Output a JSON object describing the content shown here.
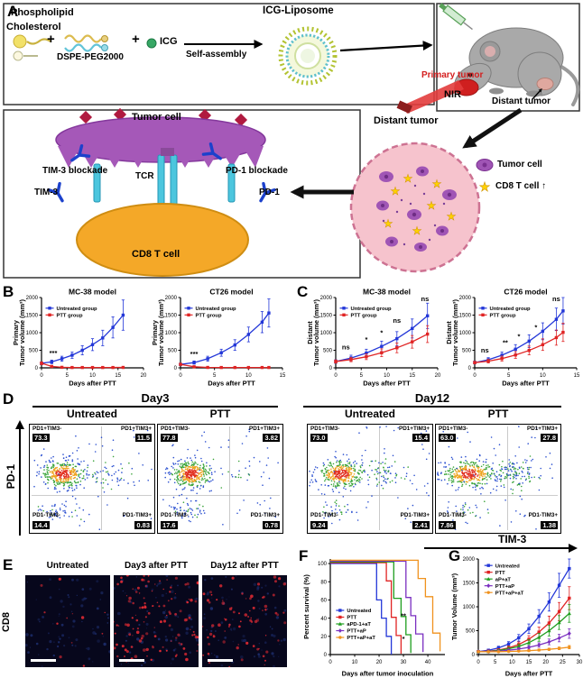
{
  "figure": {
    "panel_labels": {
      "A": "A",
      "B": "B",
      "C": "C",
      "D": "D",
      "E": "E",
      "F": "F",
      "G": "G"
    }
  },
  "panelA": {
    "phospholipid": "Phospholipid",
    "cholesterol": "Cholesterol",
    "plus": "+",
    "dspe": "DSPE-PEG2000",
    "icg": "ICG",
    "self_assembly": "Self-assembly",
    "icg_liposome": "ICG-Liposome",
    "primary_tumor": "Primary tumor",
    "nir": "NIR",
    "distant_tumor_on_mouse": "Distant tumor",
    "tumor_cell": "Tumor cell",
    "tim3_blockade": "TIM-3 blockade",
    "tcr": "TCR",
    "pd1_blockade": "PD-1 blockade",
    "tim3": "TIM-3",
    "pd1": "PD-1",
    "cd8_t_cell": "CD8 T cell",
    "distant_tumor": "Distant tumor",
    "legend_tumor_cell": "Tumor cell",
    "legend_cd8": "CD8 T cell ↑"
  },
  "chart_data": [
    {
      "id": "B-MC38",
      "type": "line",
      "title": "MC-38 model",
      "xlabel": "Days after PTT",
      "ylabel": [
        "Primary",
        "Tumor volume (mm³)"
      ],
      "xlim": [
        0,
        20
      ],
      "xticks": [
        0,
        5,
        10,
        15,
        20
      ],
      "ylim": [
        0,
        2000
      ],
      "yticks": [
        0,
        500,
        1000,
        1500,
        2000
      ],
      "legend_pos": [
        0.04,
        0.1
      ],
      "m": {
        "l": 32,
        "r": 5,
        "t": 12,
        "b": 22
      },
      "series": [
        {
          "name": "Untreated group",
          "color": "#2337d8",
          "marker": "square",
          "x": [
            0,
            2,
            4,
            6,
            8,
            10,
            12,
            14,
            16
          ],
          "y": [
            130,
            170,
            260,
            360,
            500,
            660,
            850,
            1150,
            1500
          ],
          "err": [
            40,
            50,
            70,
            90,
            130,
            170,
            220,
            300,
            430
          ]
        },
        {
          "name": "PTT group",
          "color": "#e02424",
          "marker": "square",
          "x": [
            0,
            2,
            4,
            6,
            8,
            10,
            12,
            14,
            16
          ],
          "y": [
            130,
            40,
            15,
            10,
            10,
            10,
            10,
            10,
            12
          ],
          "err": [
            40,
            20,
            8,
            5,
            5,
            5,
            5,
            5,
            6
          ]
        }
      ],
      "annotations": [
        {
          "t": "***",
          "x": 2.3,
          "y": 360
        }
      ]
    },
    {
      "id": "B-CT26",
      "type": "line",
      "title": "CT26 model",
      "xlabel": "Days after PTT",
      "ylabel": [
        "Primary",
        "Tumor volume (mm³)"
      ],
      "xlim": [
        0,
        15
      ],
      "xticks": [
        0,
        5,
        10,
        15
      ],
      "ylim": [
        0,
        2000
      ],
      "yticks": [
        0,
        500,
        1000,
        1500,
        2000
      ],
      "legend_pos": [
        0.04,
        0.1
      ],
      "m": {
        "l": 32,
        "r": 5,
        "t": 12,
        "b": 22
      },
      "series": [
        {
          "name": "Untreated group",
          "color": "#2337d8",
          "marker": "square",
          "x": [
            0,
            2,
            4,
            6,
            8,
            10,
            12,
            13
          ],
          "y": [
            100,
            150,
            260,
            430,
            650,
            950,
            1300,
            1560
          ],
          "err": [
            30,
            45,
            70,
            100,
            150,
            210,
            300,
            400
          ]
        },
        {
          "name": "PTT group",
          "color": "#e02424",
          "marker": "square",
          "x": [
            0,
            2,
            4,
            6,
            8,
            10,
            12,
            13
          ],
          "y": [
            100,
            30,
            12,
            10,
            10,
            10,
            10,
            10
          ],
          "err": [
            30,
            15,
            8,
            5,
            5,
            5,
            5,
            5
          ]
        }
      ],
      "annotations": [
        {
          "t": "***",
          "x": 2.0,
          "y": 330
        }
      ]
    },
    {
      "id": "C-MC38",
      "type": "line",
      "title": "MC-38 model",
      "xlabel": "Days after PTT",
      "ylabel": [
        "Distant",
        "Tumor volume (mm³)"
      ],
      "xlim": [
        0,
        20
      ],
      "xticks": [
        0,
        5,
        10,
        15,
        20
      ],
      "ylim": [
        0,
        2000
      ],
      "yticks": [
        0,
        500,
        1000,
        1500,
        2000
      ],
      "legend_pos": [
        0.04,
        0.1
      ],
      "m": {
        "l": 32,
        "r": 5,
        "t": 12,
        "b": 22
      },
      "series": [
        {
          "name": "Untreated group",
          "color": "#2337d8",
          "marker": "square",
          "x": [
            0,
            3,
            6,
            9,
            12,
            15,
            18
          ],
          "y": [
            180,
            280,
            420,
            610,
            830,
            1120,
            1480
          ],
          "err": [
            50,
            80,
            110,
            150,
            200,
            270,
            360
          ]
        },
        {
          "name": "PTT group",
          "color": "#e02424",
          "marker": "square",
          "x": [
            0,
            3,
            6,
            9,
            12,
            15,
            18
          ],
          "y": [
            180,
            235,
            315,
            430,
            570,
            740,
            960
          ],
          "err": [
            45,
            60,
            80,
            110,
            140,
            180,
            240
          ]
        }
      ],
      "annotations": [
        {
          "t": "ns",
          "x": 2,
          "y": 520
        },
        {
          "t": "*",
          "x": 6,
          "y": 740
        },
        {
          "t": "*",
          "x": 9,
          "y": 940
        },
        {
          "t": "ns",
          "x": 12,
          "y": 1280
        },
        {
          "t": "ns",
          "x": 17.5,
          "y": 1900
        }
      ]
    },
    {
      "id": "C-CT26",
      "type": "line",
      "title": "CT26 model",
      "xlabel": "Days after PTT",
      "ylabel": [
        "Distant",
        "Tumor volume (mm³)"
      ],
      "xlim": [
        0,
        15
      ],
      "xticks": [
        0,
        5,
        10,
        15
      ],
      "ylim": [
        0,
        2000
      ],
      "yticks": [
        0,
        500,
        1000,
        1500,
        2000
      ],
      "legend_pos": [
        0.04,
        0.1
      ],
      "m": {
        "l": 32,
        "r": 5,
        "t": 12,
        "b": 22
      },
      "series": [
        {
          "name": "Untreated group",
          "color": "#2337d8",
          "marker": "square",
          "x": [
            0,
            2,
            4,
            6,
            8,
            10,
            12,
            13
          ],
          "y": [
            150,
            230,
            360,
            530,
            760,
            1040,
            1380,
            1620
          ],
          "err": [
            40,
            60,
            90,
            130,
            180,
            240,
            320,
            380
          ]
        },
        {
          "name": "PTT group",
          "color": "#e02424",
          "marker": "square",
          "x": [
            0,
            2,
            4,
            6,
            8,
            10,
            12,
            13
          ],
          "y": [
            150,
            190,
            265,
            365,
            495,
            660,
            860,
            1010
          ],
          "err": [
            35,
            50,
            70,
            95,
            125,
            165,
            215,
            260
          ]
        }
      ],
      "annotations": [
        {
          "t": "ns",
          "x": 1.5,
          "y": 440
        },
        {
          "t": "**",
          "x": 4.5,
          "y": 660
        },
        {
          "t": "*",
          "x": 6.5,
          "y": 830
        },
        {
          "t": "*",
          "x": 9,
          "y": 1090
        },
        {
          "t": "ns",
          "x": 12,
          "y": 1900
        }
      ]
    },
    {
      "id": "F-survival",
      "type": "step",
      "xlabel": "Days after tumor inoculation",
      "ylabel": [
        "Percent survival (%)"
      ],
      "xlim": [
        0,
        47
      ],
      "xticks": [
        0,
        10,
        20,
        30,
        40
      ],
      "ylim": [
        0,
        105
      ],
      "yticks": [
        0,
        20,
        40,
        60,
        80,
        100
      ],
      "legend_pos": [
        0.05,
        0.5
      ],
      "m": {
        "l": 30,
        "r": 5,
        "t": 4,
        "b": 26
      },
      "series": [
        {
          "name": "Untreated",
          "color": "#2337d8",
          "marker": "square",
          "x": [
            0,
            17,
            19,
            21,
            23,
            25
          ],
          "y": [
            100,
            100,
            60,
            40,
            20,
            0
          ]
        },
        {
          "name": "PTT",
          "color": "#e02424",
          "marker": "square",
          "x": [
            0,
            21,
            23,
            25,
            27,
            29
          ],
          "y": [
            100,
            100,
            80,
            40,
            20,
            0
          ]
        },
        {
          "name": "aPD-1+aT",
          "color": "#1e9e1e",
          "marker": "triangle",
          "x": [
            0,
            24,
            26,
            29,
            31,
            33
          ],
          "y": [
            100,
            100,
            60,
            40,
            20,
            0
          ]
        },
        {
          "name": "PTT+aP",
          "color": "#7a2fc0",
          "marker": "diamond",
          "x": [
            0,
            28,
            31,
            33,
            35,
            38
          ],
          "y": [
            100,
            100,
            60,
            40,
            20,
            0
          ]
        },
        {
          "name": "PTT+aP+aT",
          "color": "#f0921e",
          "marker": "circle",
          "x": [
            0,
            33,
            36,
            39,
            42,
            45
          ],
          "y": [
            100,
            100,
            80,
            60,
            20,
            0
          ]
        }
      ],
      "annotations": [
        {
          "t": "**",
          "x": 30,
          "y": 40
        },
        {
          "t": "*",
          "x": 30,
          "y": 15
        }
      ]
    },
    {
      "id": "G-tumor",
      "type": "line",
      "xlabel": "Days after PTT",
      "ylabel": [
        "Tumor Volume (mm³)"
      ],
      "xlim": [
        0,
        30
      ],
      "xticks": [
        0,
        5,
        10,
        15,
        20,
        25,
        30
      ],
      "ylim": [
        0,
        2000
      ],
      "yticks": [
        0,
        500,
        1000,
        1500,
        2000
      ],
      "legend_pos": [
        0.06,
        0.03
      ],
      "m": {
        "l": 30,
        "r": 4,
        "t": 4,
        "b": 26
      },
      "series": [
        {
          "name": "Untreated",
          "color": "#2337d8",
          "marker": "square",
          "x": [
            0,
            3,
            6,
            9,
            12,
            15,
            18,
            21,
            24,
            27
          ],
          "y": [
            60,
            90,
            140,
            220,
            350,
            540,
            800,
            1100,
            1450,
            1800
          ],
          "err": [
            20,
            25,
            35,
            50,
            70,
            100,
            140,
            190,
            250,
            200
          ]
        },
        {
          "name": "PTT",
          "color": "#e02424",
          "marker": "square",
          "x": [
            0,
            3,
            6,
            9,
            12,
            15,
            18,
            21,
            24,
            27
          ],
          "y": [
            60,
            70,
            95,
            140,
            210,
            320,
            470,
            660,
            900,
            1180
          ],
          "err": [
            18,
            20,
            28,
            38,
            55,
            75,
            105,
            145,
            190,
            240
          ]
        },
        {
          "name": "aP+aT",
          "color": "#1e9e1e",
          "marker": "triangle",
          "x": [
            0,
            3,
            6,
            9,
            12,
            15,
            18,
            21,
            24,
            27
          ],
          "y": [
            60,
            65,
            85,
            120,
            170,
            250,
            360,
            500,
            670,
            860
          ],
          "err": [
            15,
            18,
            22,
            30,
            42,
            60,
            82,
            110,
            145,
            185
          ]
        },
        {
          "name": "PTT+aP",
          "color": "#7a2fc0",
          "marker": "diamond",
          "x": [
            0,
            3,
            6,
            9,
            12,
            15,
            18,
            21,
            24,
            27
          ],
          "y": [
            60,
            62,
            70,
            90,
            115,
            150,
            200,
            265,
            345,
            440
          ],
          "err": [
            12,
            14,
            17,
            22,
            28,
            36,
            46,
            60,
            78,
            100
          ]
        },
        {
          "name": "PTT+aP+aT",
          "color": "#f0921e",
          "marker": "circle",
          "x": [
            0,
            3,
            6,
            9,
            12,
            15,
            18,
            21,
            24,
            27
          ],
          "y": [
            60,
            58,
            60,
            65,
            72,
            82,
            95,
            110,
            130,
            155
          ],
          "err": [
            10,
            10,
            12,
            13,
            15,
            17,
            20,
            24,
            28,
            34
          ]
        }
      ]
    }
  ],
  "flow": {
    "day_headers": [
      "Day3",
      "Day12"
    ],
    "col_headers": [
      "Untreated",
      "PTT",
      "Untreated",
      "PTT"
    ],
    "y_axis_label": "PD-1",
    "x_axis_label": "TIM-3",
    "plots": [
      {
        "ul_name": "PD1+TIM3-",
        "ul_val": "73.3",
        "ur_name": "PD1+TIM3+",
        "ur_val": "11.5",
        "ll_name": "PD1-TIM3-",
        "ll_val": "14.4",
        "lr_name": "PD1-TIM3+",
        "lr_val": "0.83"
      },
      {
        "ul_name": "PD1+TIM3-",
        "ul_val": "77.8",
        "ur_name": "PD1+TIM3+",
        "ur_val": "3.82",
        "ll_name": "PD1-TIM3-",
        "ll_val": "17.6",
        "lr_name": "PD1-TIM3+",
        "lr_val": "0.78"
      },
      {
        "ul_name": "PD1+TIM3-",
        "ul_val": "73.0",
        "ur_name": "PD1+TIM3+",
        "ur_val": "15.4",
        "ll_name": "PD1-TIM3-",
        "ll_val": "9.24",
        "lr_name": "PD1-TIM3+",
        "lr_val": "2.41"
      },
      {
        "ul_name": "PD1+TIM3-",
        "ul_val": "63.0",
        "ur_name": "PD1+TIM3+",
        "ur_val": "27.8",
        "ll_name": "PD1-TIM3-",
        "ll_val": "7.86",
        "lr_name": "PD1-TIM3+",
        "lr_val": "1.38"
      }
    ]
  },
  "microscopy": {
    "row_label": "CD8",
    "columns": [
      "Untreated",
      "Day3 after PTT",
      "Day12 after PTT"
    ],
    "red_density": [
      12,
      120,
      75
    ]
  }
}
